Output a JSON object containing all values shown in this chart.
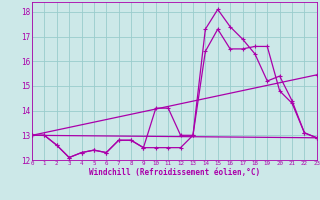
{
  "xlabel": "Windchill (Refroidissement éolien,°C)",
  "bg_color": "#cce8e8",
  "line_color": "#aa00aa",
  "grid_color": "#99cccc",
  "xmin": 0,
  "xmax": 23,
  "ymin": 12,
  "ymax": 18.4,
  "series1_x": [
    0,
    1,
    2,
    3,
    4,
    5,
    6,
    7,
    8,
    9,
    10,
    11,
    12,
    13,
    14,
    15,
    16,
    17,
    18,
    19,
    20,
    21,
    22,
    23
  ],
  "series1_y": [
    13.0,
    13.0,
    12.6,
    12.1,
    12.3,
    12.4,
    12.3,
    12.8,
    12.8,
    12.5,
    12.5,
    12.5,
    12.5,
    13.0,
    16.4,
    17.3,
    16.5,
    16.5,
    16.6,
    16.6,
    14.8,
    14.3,
    13.1,
    12.9
  ],
  "series2_x": [
    0,
    1,
    2,
    3,
    4,
    5,
    6,
    7,
    8,
    9,
    10,
    11,
    12,
    13,
    14,
    15,
    16,
    17,
    18,
    19,
    20,
    21,
    22,
    23
  ],
  "series2_y": [
    13.0,
    13.0,
    12.6,
    12.1,
    12.3,
    12.4,
    12.3,
    12.8,
    12.8,
    12.5,
    14.1,
    14.1,
    13.0,
    13.0,
    17.3,
    18.1,
    17.4,
    16.9,
    16.3,
    15.2,
    15.4,
    14.4,
    13.1,
    12.9
  ],
  "series3_x": [
    0,
    23
  ],
  "series3_y": [
    13.0,
    15.45
  ],
  "series4_x": [
    0,
    23
  ],
  "series4_y": [
    13.0,
    12.9
  ],
  "xticks": [
    0,
    1,
    2,
    3,
    4,
    5,
    6,
    7,
    8,
    9,
    10,
    11,
    12,
    13,
    14,
    15,
    16,
    17,
    18,
    19,
    20,
    21,
    22,
    23
  ],
  "yticks": [
    12,
    13,
    14,
    15,
    16,
    17,
    18
  ]
}
